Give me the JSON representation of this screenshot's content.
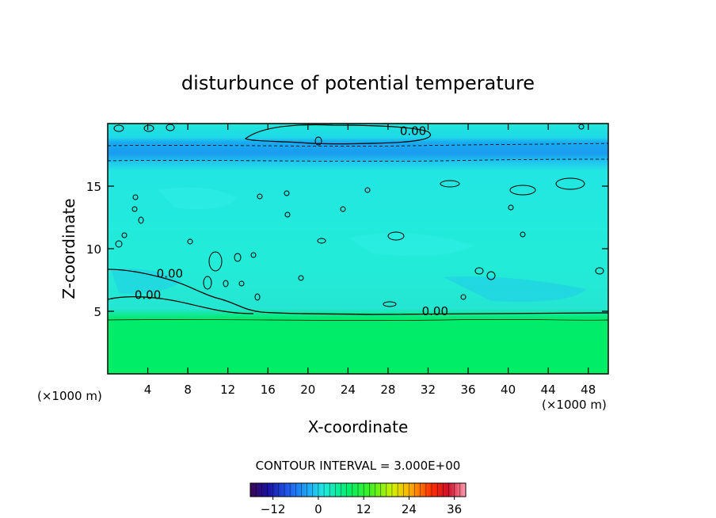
{
  "chart_data": {
    "type": "heatmap",
    "title": "disturbunce of potential temperature",
    "xlabel": "X-coordinate",
    "ylabel": "Z-coordinate",
    "x_unit_left": "(×1000 m)",
    "x_unit_right": "(×1000 m)",
    "xlim": [
      0,
      50
    ],
    "ylim": [
      0,
      20
    ],
    "x_ticks": [
      4,
      8,
      12,
      16,
      20,
      24,
      28,
      32,
      36,
      40,
      44,
      48
    ],
    "y_ticks": [
      5,
      10,
      15
    ],
    "contour_interval_text": "CONTOUR INTERVAL = 3.000E+00",
    "contour_labels": [
      {
        "text": "0.00",
        "x": 30.5,
        "z": 19.4
      },
      {
        "text": "0.00",
        "x": 6.2,
        "z": 8.0
      },
      {
        "text": "0.00",
        "x": 4.0,
        "z": 6.3
      },
      {
        "text": "0.00",
        "x": 32.7,
        "z": 5.0
      }
    ],
    "field_summary": {
      "lower_region_z": [
        0,
        4.5
      ],
      "lower_region_value_approx": 9,
      "upper_region_value_approx": 1,
      "stratospheric_band_z": [
        16.5,
        18.5
      ],
      "stratospheric_band_value_approx": -2
    },
    "colorbar": {
      "range": [
        -18,
        39
      ],
      "tick_labels": [
        "−12",
        "0",
        "12",
        "24",
        "36"
      ],
      "tick_values": [
        -12,
        0,
        12,
        24,
        36
      ]
    },
    "colors": {
      "lower": "#00ee66",
      "upper": "#22eedd",
      "band": "#1199ee"
    }
  }
}
